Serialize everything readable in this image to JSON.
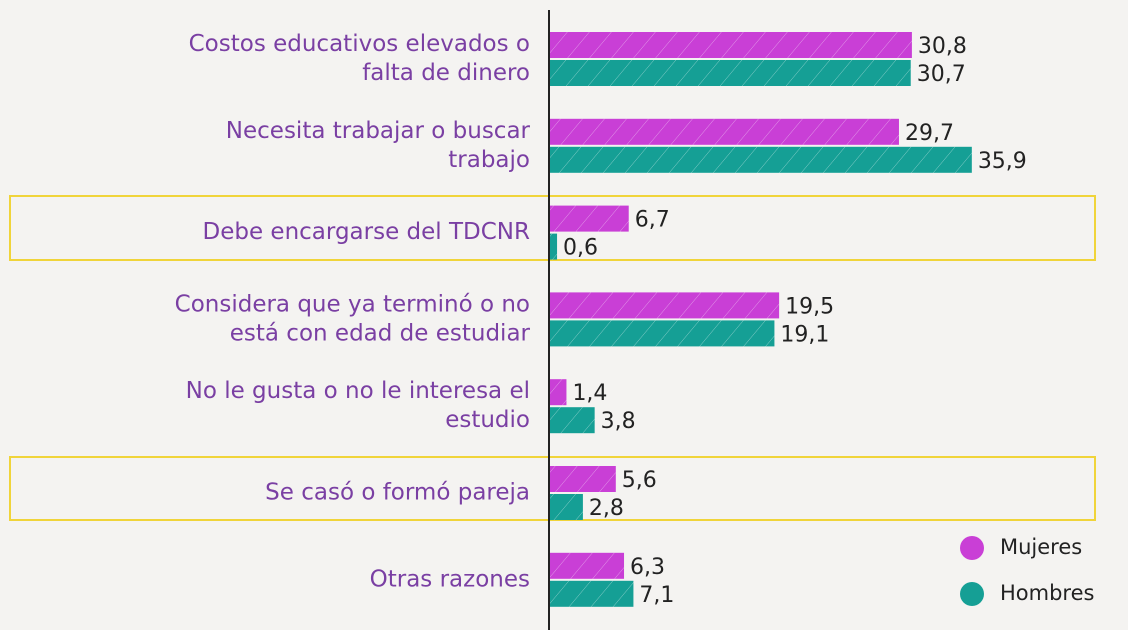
{
  "chart_data": {
    "type": "bar",
    "orientation": "horizontal",
    "categories": [
      [
        "Costos educativos elevados o",
        "falta de dinero"
      ],
      [
        "Necesita trabajar o buscar",
        "trabajo"
      ],
      [
        "Debe encargarse del TDCNR"
      ],
      [
        "Considera que ya terminó o no",
        "está con edad de estudiar"
      ],
      [
        "No le gusta o no le interesa el",
        "estudio"
      ],
      [
        "Se casó o formó pareja"
      ],
      [
        "Otras razones"
      ]
    ],
    "series": [
      {
        "name": "Mujeres",
        "color": "#c93fd6",
        "values": [
          30.8,
          29.7,
          6.7,
          19.5,
          1.4,
          5.6,
          6.3
        ],
        "value_labels": [
          "30,8",
          "29,7",
          "6,7",
          "19,5",
          "1,4",
          "5,6",
          "6,3"
        ]
      },
      {
        "name": "Hombres",
        "color": "#159f95",
        "values": [
          30.7,
          35.9,
          0.6,
          19.1,
          3.8,
          2.8,
          7.1
        ],
        "value_labels": [
          "30,7",
          "35,9",
          "0,6",
          "19,1",
          "3,8",
          "2,8",
          "7,1"
        ]
      }
    ],
    "legend": "bottom-right"
  }
}
